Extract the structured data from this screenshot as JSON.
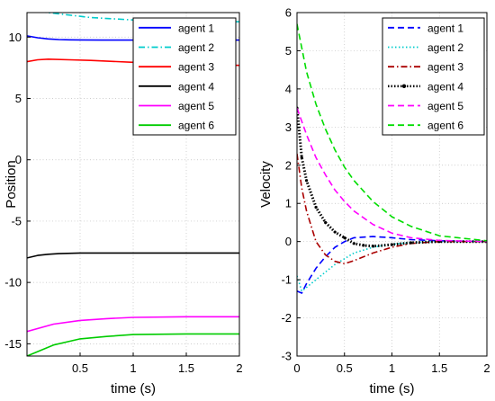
{
  "chart_data": [
    {
      "type": "line",
      "xlabel": "time (s)",
      "ylabel": "Position",
      "xlim": [
        0,
        2
      ],
      "ylim": [
        -16,
        12
      ],
      "x_ticks": [
        0.5,
        1,
        1.5,
        2
      ],
      "y_ticks": [
        -15,
        -10,
        -5,
        0,
        5,
        10
      ],
      "grid": true,
      "legend_position": "top-right",
      "series": [
        {
          "name": "agent 1",
          "color": "#0000ff",
          "dash": "solid",
          "x": [
            0,
            0.1,
            0.2,
            0.3,
            0.4,
            0.5,
            0.7,
            1.0,
            1.5,
            2.0
          ],
          "y": [
            10.1,
            9.95,
            9.85,
            9.8,
            9.78,
            9.77,
            9.76,
            9.76,
            9.76,
            9.76
          ]
        },
        {
          "name": "agent 2",
          "color": "#00cccc",
          "dash": "dashdot",
          "x": [
            0,
            0.3,
            0.6,
            1.0,
            1.5,
            2.0
          ],
          "y": [
            12.2,
            11.9,
            11.6,
            11.4,
            11.3,
            11.25
          ]
        },
        {
          "name": "agent 3",
          "color": "#ff0000",
          "dash": "solid",
          "x": [
            0,
            0.1,
            0.2,
            0.4,
            0.6,
            1.0,
            1.5,
            2.0
          ],
          "y": [
            8.0,
            8.15,
            8.2,
            8.15,
            8.1,
            7.95,
            7.8,
            7.7
          ]
        },
        {
          "name": "agent 4",
          "color": "#000000",
          "dash": "solid",
          "x": [
            0,
            0.1,
            0.2,
            0.3,
            0.5,
            0.7,
            1.0,
            1.5,
            2.0
          ],
          "y": [
            -8.0,
            -7.8,
            -7.7,
            -7.65,
            -7.6,
            -7.6,
            -7.6,
            -7.6,
            -7.6
          ]
        },
        {
          "name": "agent 5",
          "color": "#ff00ff",
          "dash": "solid",
          "x": [
            0,
            0.25,
            0.5,
            0.75,
            1.0,
            1.5,
            2.0
          ],
          "y": [
            -14.0,
            -13.4,
            -13.1,
            -12.95,
            -12.85,
            -12.8,
            -12.8
          ]
        },
        {
          "name": "agent 6",
          "color": "#00cc00",
          "dash": "solid",
          "x": [
            0,
            0.25,
            0.5,
            0.75,
            1.0,
            1.5,
            2.0
          ],
          "y": [
            -16.0,
            -15.1,
            -14.6,
            -14.4,
            -14.25,
            -14.2,
            -14.2
          ]
        }
      ]
    },
    {
      "type": "line",
      "xlabel": "time (s)",
      "ylabel": "Velocity",
      "xlim": [
        0,
        2
      ],
      "ylim": [
        -3,
        6
      ],
      "x_ticks": [
        0,
        0.5,
        1,
        1.5,
        2
      ],
      "y_ticks": [
        -3,
        -2,
        -1,
        0,
        1,
        2,
        3,
        4,
        5,
        6
      ],
      "grid": true,
      "legend_position": "top-right",
      "series": [
        {
          "name": "agent 1",
          "color": "#0000ff",
          "dash": "dashed",
          "x": [
            0,
            0.05,
            0.1,
            0.2,
            0.3,
            0.4,
            0.5,
            0.6,
            0.8,
            1.0,
            1.2,
            1.5,
            2.0
          ],
          "y": [
            -1.3,
            -1.35,
            -1.1,
            -0.7,
            -0.4,
            -0.15,
            0.0,
            0.1,
            0.13,
            0.1,
            0.05,
            0.02,
            0.0
          ]
        },
        {
          "name": "agent 2",
          "color": "#00cccc",
          "dash": "dotted",
          "x": [
            0,
            0.05,
            0.1,
            0.2,
            0.3,
            0.4,
            0.5,
            0.6,
            0.8,
            1.0,
            1.2,
            1.5,
            2.0
          ],
          "y": [
            -0.9,
            -1.3,
            -1.2,
            -1.0,
            -0.8,
            -0.6,
            -0.45,
            -0.3,
            -0.15,
            -0.07,
            -0.03,
            0.0,
            0.0
          ]
        },
        {
          "name": "agent 3",
          "color": "#aa0000",
          "dash": "dashdot",
          "x": [
            0,
            0.05,
            0.1,
            0.2,
            0.3,
            0.4,
            0.5,
            0.6,
            0.8,
            1.0,
            1.2,
            1.5,
            2.0
          ],
          "y": [
            2.3,
            1.4,
            0.8,
            0.0,
            -0.35,
            -0.52,
            -0.58,
            -0.5,
            -0.3,
            -0.15,
            -0.05,
            0.0,
            0.0
          ]
        },
        {
          "name": "agent 4",
          "color": "#000000",
          "dash": "dotted-marker",
          "x": [
            0,
            0.05,
            0.1,
            0.2,
            0.3,
            0.4,
            0.5,
            0.6,
            0.7,
            0.8,
            1.0,
            1.2,
            1.5,
            2.0
          ],
          "y": [
            3.5,
            2.2,
            1.6,
            0.9,
            0.5,
            0.25,
            0.1,
            -0.05,
            -0.1,
            -0.12,
            -0.08,
            -0.03,
            0.0,
            0.0
          ]
        },
        {
          "name": "agent 5",
          "color": "#ff00ff",
          "dash": "dashed",
          "x": [
            0,
            0.1,
            0.2,
            0.3,
            0.4,
            0.5,
            0.6,
            0.8,
            1.0,
            1.2,
            1.5,
            2.0
          ],
          "y": [
            3.5,
            2.8,
            2.2,
            1.75,
            1.35,
            1.05,
            0.8,
            0.45,
            0.22,
            0.1,
            0.03,
            0.0
          ]
        },
        {
          "name": "agent 6",
          "color": "#00dd00",
          "dash": "dashed",
          "x": [
            0,
            0.1,
            0.2,
            0.3,
            0.4,
            0.5,
            0.6,
            0.8,
            1.0,
            1.2,
            1.5,
            2.0
          ],
          "y": [
            5.7,
            4.45,
            3.6,
            2.95,
            2.4,
            1.95,
            1.6,
            1.05,
            0.65,
            0.4,
            0.15,
            0.02
          ]
        }
      ]
    }
  ]
}
